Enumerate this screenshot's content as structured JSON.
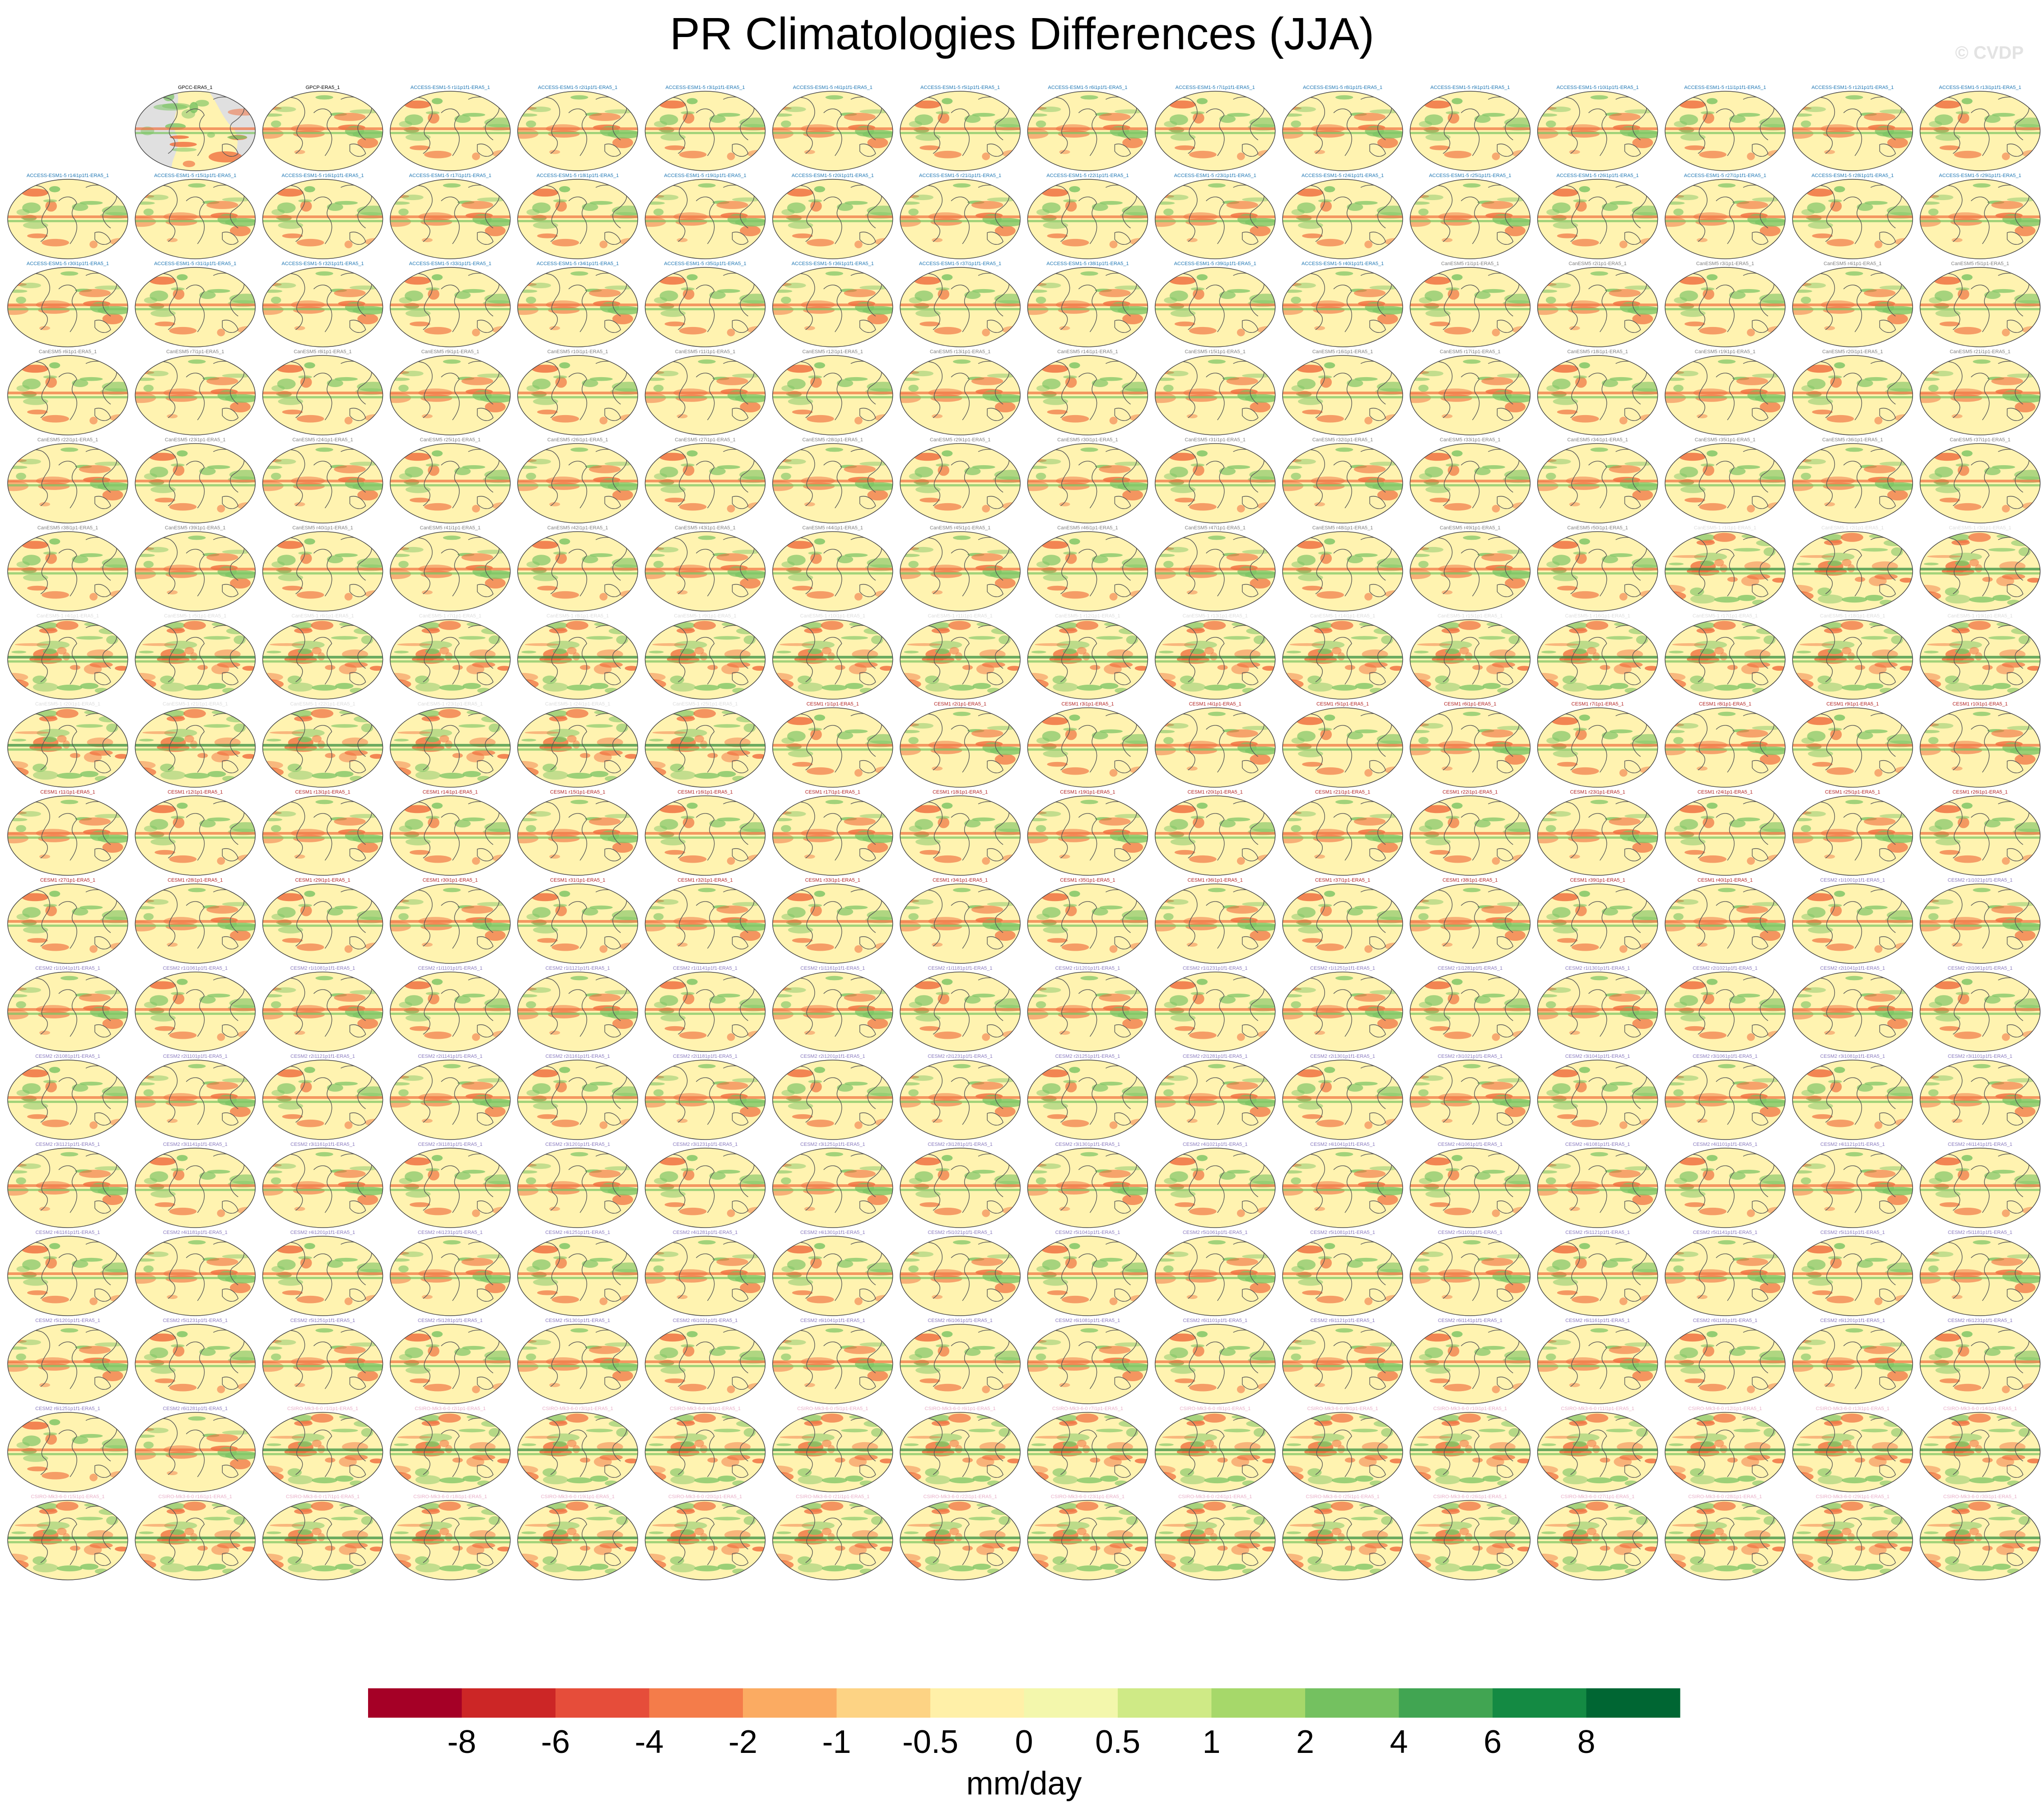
{
  "title": "PR Climatologies Differences (JJA)",
  "watermark": "© CVDP",
  "chart_data": {
    "type": "heatmap",
    "title": "PR Climatologies Differences (JJA)",
    "grid": {
      "rows": 18,
      "columns": 16,
      "first_row_offset": 1
    },
    "panels": [
      "GPCC-ERA5_1",
      "GPCP-ERA5_1",
      "ACCESS-ESM1-5 r1i1p1f1-ERA5_1",
      "ACCESS-ESM1-5 r2i1p1f1-ERA5_1",
      "ACCESS-ESM1-5 r3i1p1f1-ERA5_1",
      "ACCESS-ESM1-5 r4i1p1f1-ERA5_1",
      "ACCESS-ESM1-5 r5i1p1f1-ERA5_1",
      "ACCESS-ESM1-5 r6i1p1f1-ERA5_1",
      "ACCESS-ESM1-5 r7i1p1f1-ERA5_1",
      "ACCESS-ESM1-5 r8i1p1f1-ERA5_1",
      "ACCESS-ESM1-5 r9i1p1f1-ERA5_1",
      "ACCESS-ESM1-5 r10i1p1f1-ERA5_1",
      "ACCESS-ESM1-5 r11i1p1f1-ERA5_1",
      "ACCESS-ESM1-5 r12i1p1f1-ERA5_1",
      "ACCESS-ESM1-5 r13i1p1f1-ERA5_1",
      "ACCESS-ESM1-5 r14i1p1f1-ERA5_1",
      "ACCESS-ESM1-5 r15i1p1f1-ERA5_1",
      "ACCESS-ESM1-5 r16i1p1f1-ERA5_1",
      "ACCESS-ESM1-5 r17i1p1f1-ERA5_1",
      "ACCESS-ESM1-5 r18i1p1f1-ERA5_1",
      "ACCESS-ESM1-5 r19i1p1f1-ERA5_1",
      "ACCESS-ESM1-5 r20i1p1f1-ERA5_1",
      "ACCESS-ESM1-5 r21i1p1f1-ERA5_1",
      "ACCESS-ESM1-5 r22i1p1f1-ERA5_1",
      "ACCESS-ESM1-5 r23i1p1f1-ERA5_1",
      "ACCESS-ESM1-5 r24i1p1f1-ERA5_1",
      "ACCESS-ESM1-5 r25i1p1f1-ERA5_1",
      "ACCESS-ESM1-5 r26i1p1f1-ERA5_1",
      "ACCESS-ESM1-5 r27i1p1f1-ERA5_1",
      "ACCESS-ESM1-5 r28i1p1f1-ERA5_1",
      "ACCESS-ESM1-5 r29i1p1f1-ERA5_1",
      "ACCESS-ESM1-5 r30i1p1f1-ERA5_1",
      "ACCESS-ESM1-5 r31i1p1f1-ERA5_1",
      "ACCESS-ESM1-5 r32i1p1f1-ERA5_1",
      "ACCESS-ESM1-5 r33i1p1f1-ERA5_1",
      "ACCESS-ESM1-5 r34i1p1f1-ERA5_1",
      "ACCESS-ESM1-5 r35i1p1f1-ERA5_1",
      "ACCESS-ESM1-5 r36i1p1f1-ERA5_1",
      "ACCESS-ESM1-5 r37i1p1f1-ERA5_1",
      "ACCESS-ESM1-5 r38i1p1f1-ERA5_1",
      "ACCESS-ESM1-5 r39i1p1f1-ERA5_1",
      "ACCESS-ESM1-5 r40i1p1f1-ERA5_1",
      "CanESM5 r1i1p1-ERA5_1",
      "CanESM5 r2i1p1-ERA5_1",
      "CanESM5 r3i1p1-ERA5_1",
      "CanESM5 r4i1p1-ERA5_1",
      "CanESM5 r5i1p1-ERA5_1",
      "CanESM5 r6i1p1-ERA5_1",
      "CanESM5 r7i1p1-ERA5_1",
      "CanESM5 r8i1p1-ERA5_1",
      "CanESM5 r9i1p1-ERA5_1",
      "CanESM5 r10i1p1-ERA5_1",
      "CanESM5 r11i1p1-ERA5_1",
      "CanESM5 r12i1p1-ERA5_1",
      "CanESM5 r13i1p1-ERA5_1",
      "CanESM5 r14i1p1-ERA5_1",
      "CanESM5 r15i1p1-ERA5_1",
      "CanESM5 r16i1p1-ERA5_1",
      "CanESM5 r17i1p1-ERA5_1",
      "CanESM5 r18i1p1-ERA5_1",
      "CanESM5 r19i1p1-ERA5_1",
      "CanESM5 r20i1p1-ERA5_1",
      "CanESM5 r21i1p1-ERA5_1",
      "CanESM5 r22i1p1-ERA5_1",
      "CanESM5 r23i1p1-ERA5_1",
      "CanESM5 r24i1p1-ERA5_1",
      "CanESM5 r25i1p1-ERA5_1",
      "CanESM5 r26i1p1-ERA5_1",
      "CanESM5 r27i1p1-ERA5_1",
      "CanESM5 r28i1p1-ERA5_1",
      "CanESM5 r29i1p1-ERA5_1",
      "CanESM5 r30i1p1-ERA5_1",
      "CanESM5 r31i1p1-ERA5_1",
      "CanESM5 r32i1p1-ERA5_1",
      "CanESM5 r33i1p1-ERA5_1",
      "CanESM5 r34i1p1-ERA5_1",
      "CanESM5 r35i1p1-ERA5_1",
      "CanESM5 r36i1p1-ERA5_1",
      "CanESM5 r37i1p1-ERA5_1",
      "CanESM5 r38i1p1-ERA5_1",
      "CanESM5 r39i1p1-ERA5_1",
      "CanESM5 r40i1p1-ERA5_1",
      "CanESM5 r41i1p1-ERA5_1",
      "CanESM5 r42i1p1-ERA5_1",
      "CanESM5 r43i1p1-ERA5_1",
      "CanESM5 r44i1p1-ERA5_1",
      "CanESM5 r45i1p1-ERA5_1",
      "CanESM5 r46i1p1-ERA5_1",
      "CanESM5 r47i1p1-ERA5_1",
      "CanESM5 r48i1p1-ERA5_1",
      "CanESM5 r49i1p1-ERA5_1",
      "CanESM5 r50i1p1-ERA5_1",
      "CanESM5-1 r1i1p1-ERA5_1",
      "CanESM5-1 r2i1p1-ERA5_1",
      "CanESM5-1 r3i1p1-ERA5_1",
      "CanESM5-1 r4i1p1-ERA5_1",
      "CanESM5-1 r5i1p1-ERA5_1",
      "CanESM5-1 r6i1p1-ERA5_1",
      "CanESM5-1 r7i1p1-ERA5_1",
      "CanESM5-1 r8i1p1-ERA5_1",
      "CanESM5-1 r9i1p1-ERA5_1",
      "CanESM5-1 r10i1p1-ERA5_1",
      "CanESM5-1 r11i1p1-ERA5_1",
      "CanESM5-1 r12i1p1-ERA5_1",
      "CanESM5-1 r13i1p1-ERA5_1",
      "CanESM5-1 r14i1p1-ERA5_1",
      "CanESM5-1 r15i1p1-ERA5_1",
      "CanESM5-1 r16i1p1-ERA5_1",
      "CanESM5-1 r17i1p1-ERA5_1",
      "CanESM5-1 r18i1p1-ERA5_1",
      "CanESM5-1 r19i1p1-ERA5_1",
      "CanESM5-1 r20i1p1-ERA5_1",
      "CanESM5-1 r21i1p1-ERA5_1",
      "CanESM5-1 r22i1p1-ERA5_1",
      "CanESM5-1 r23i1p1-ERA5_1",
      "CanESM5-1 r24i1p1-ERA5_1",
      "CanESM5-1 r25i1p1-ERA5_1",
      "CESM1 r1i1p1-ERA5_1",
      "CESM1 r2i1p1-ERA5_1",
      "CESM1 r3i1p1-ERA5_1",
      "CESM1 r4i1p1-ERA5_1",
      "CESM1 r5i1p1-ERA5_1",
      "CESM1 r6i1p1-ERA5_1",
      "CESM1 r7i1p1-ERA5_1",
      "CESM1 r8i1p1-ERA5_1",
      "CESM1 r9i1p1-ERA5_1",
      "CESM1 r10i1p1-ERA5_1",
      "CESM1 r11i1p1-ERA5_1",
      "CESM1 r12i1p1-ERA5_1",
      "CESM1 r13i1p1-ERA5_1",
      "CESM1 r14i1p1-ERA5_1",
      "CESM1 r15i1p1-ERA5_1",
      "CESM1 r16i1p1-ERA5_1",
      "CESM1 r17i1p1-ERA5_1",
      "CESM1 r18i1p1-ERA5_1",
      "CESM1 r19i1p1-ERA5_1",
      "CESM1 r20i1p1-ERA5_1",
      "CESM1 r21i1p1-ERA5_1",
      "CESM1 r22i1p1-ERA5_1",
      "CESM1 r23i1p1-ERA5_1",
      "CESM1 r24i1p1-ERA5_1",
      "CESM1 r25i1p1-ERA5_1",
      "CESM1 r26i1p1-ERA5_1",
      "CESM1 r27i1p1-ERA5_1",
      "CESM1 r28i1p1-ERA5_1",
      "CESM1 r29i1p1-ERA5_1",
      "CESM1 r30i1p1-ERA5_1",
      "CESM1 r31i1p1-ERA5_1",
      "CESM1 r32i1p1-ERA5_1",
      "CESM1 r33i1p1-ERA5_1",
      "CESM1 r34i1p1-ERA5_1",
      "CESM1 r35i1p1-ERA5_1",
      "CESM1 r36i1p1-ERA5_1",
      "CESM1 r37i1p1-ERA5_1",
      "CESM1 r38i1p1-ERA5_1",
      "CESM1 r39i1p1-ERA5_1",
      "CESM1 r40i1p1-ERA5_1",
      "CESM2 r1i1001p1f1-ERA5_1",
      "CESM2 r1i1021p1f1-ERA5_1",
      "CESM2 r1i1041p1f1-ERA5_1",
      "CESM2 r1i1061p1f1-ERA5_1",
      "CESM2 r1i1081p1f1-ERA5_1",
      "CESM2 r1i1101p1f1-ERA5_1",
      "CESM2 r1i1121p1f1-ERA5_1",
      "CESM2 r1i1141p1f1-ERA5_1",
      "CESM2 r1i1161p1f1-ERA5_1",
      "CESM2 r1i1181p1f1-ERA5_1",
      "CESM2 r1i1201p1f1-ERA5_1",
      "CESM2 r1i1231p1f1-ERA5_1",
      "CESM2 r1i1251p1f1-ERA5_1",
      "CESM2 r1i1281p1f1-ERA5_1",
      "CESM2 r1i1301p1f1-ERA5_1",
      "CESM2 r2i1021p1f1-ERA5_1",
      "CESM2 r2i1041p1f1-ERA5_1",
      "CESM2 r2i1061p1f1-ERA5_1",
      "CESM2 r2i1081p1f1-ERA5_1",
      "CESM2 r2i1101p1f1-ERA5_1",
      "CESM2 r2i1121p1f1-ERA5_1",
      "CESM2 r2i1141p1f1-ERA5_1",
      "CESM2 r2i1161p1f1-ERA5_1",
      "CESM2 r2i1181p1f1-ERA5_1",
      "CESM2 r2i1201p1f1-ERA5_1",
      "CESM2 r2i1231p1f1-ERA5_1",
      "CESM2 r2i1251p1f1-ERA5_1",
      "CESM2 r2i1281p1f1-ERA5_1",
      "CESM2 r2i1301p1f1-ERA5_1",
      "CESM2 r3i1021p1f1-ERA5_1",
      "CESM2 r3i1041p1f1-ERA5_1",
      "CESM2 r3i1061p1f1-ERA5_1",
      "CESM2 r3i1081p1f1-ERA5_1",
      "CESM2 r3i1101p1f1-ERA5_1",
      "CESM2 r3i1121p1f1-ERA5_1",
      "CESM2 r3i1141p1f1-ERA5_1",
      "CESM2 r3i1161p1f1-ERA5_1",
      "CESM2 r3i1181p1f1-ERA5_1",
      "CESM2 r3i1201p1f1-ERA5_1",
      "CESM2 r3i1231p1f1-ERA5_1",
      "CESM2 r3i1251p1f1-ERA5_1",
      "CESM2 r3i1281p1f1-ERA5_1",
      "CESM2 r3i1301p1f1-ERA5_1",
      "CESM2 r4i1021p1f1-ERA5_1",
      "CESM2 r4i1041p1f1-ERA5_1",
      "CESM2 r4i1061p1f1-ERA5_1",
      "CESM2 r4i1081p1f1-ERA5_1",
      "CESM2 r4i1101p1f1-ERA5_1",
      "CESM2 r4i1121p1f1-ERA5_1",
      "CESM2 r4i1141p1f1-ERA5_1",
      "CESM2 r4i1161p1f1-ERA5_1",
      "CESM2 r4i1181p1f1-ERA5_1",
      "CESM2 r4i1201p1f1-ERA5_1",
      "CESM2 r4i1231p1f1-ERA5_1",
      "CESM2 r4i1251p1f1-ERA5_1",
      "CESM2 r4i1281p1f1-ERA5_1",
      "CESM2 r4i1301p1f1-ERA5_1",
      "CESM2 r5i1021p1f1-ERA5_1",
      "CESM2 r5i1041p1f1-ERA5_1",
      "CESM2 r5i1061p1f1-ERA5_1",
      "CESM2 r5i1081p1f1-ERA5_1",
      "CESM2 r5i1101p1f1-ERA5_1",
      "CESM2 r5i1121p1f1-ERA5_1",
      "CESM2 r5i1141p1f1-ERA5_1",
      "CESM2 r5i1161p1f1-ERA5_1",
      "CESM2 r5i1181p1f1-ERA5_1",
      "CESM2 r5i1201p1f1-ERA5_1",
      "CESM2 r5i1231p1f1-ERA5_1",
      "CESM2 r5i1251p1f1-ERA5_1",
      "CESM2 r5i1281p1f1-ERA5_1",
      "CESM2 r5i1301p1f1-ERA5_1",
      "CESM2 r6i1021p1f1-ERA5_1",
      "CESM2 r6i1041p1f1-ERA5_1",
      "CESM2 r6i1061p1f1-ERA5_1",
      "CESM2 r6i1081p1f1-ERA5_1",
      "CESM2 r6i1101p1f1-ERA5_1",
      "CESM2 r6i1121p1f1-ERA5_1",
      "CESM2 r6i1141p1f1-ERA5_1",
      "CESM2 r6i1161p1f1-ERA5_1",
      "CESM2 r6i1181p1f1-ERA5_1",
      "CESM2 r6i1201p1f1-ERA5_1",
      "CESM2 r6i1231p1f1-ERA5_1",
      "CESM2 r6i1251p1f1-ERA5_1",
      "CESM2 r6i1281p1f1-ERA5_1",
      "CSIRO-Mk3-6-0 r1i1p1-ERA5_1",
      "CSIRO-Mk3-6-0 r2i1p1-ERA5_1",
      "CSIRO-Mk3-6-0 r3i1p1-ERA5_1",
      "CSIRO-Mk3-6-0 r4i1p1-ERA5_1",
      "CSIRO-Mk3-6-0 r5i1p1-ERA5_1",
      "CSIRO-Mk3-6-0 r6i1p1-ERA5_1",
      "CSIRO-Mk3-6-0 r7i1p1-ERA5_1",
      "CSIRO-Mk3-6-0 r8i1p1-ERA5_1",
      "CSIRO-Mk3-6-0 r9i1p1-ERA5_1",
      "CSIRO-Mk3-6-0 r10i1p1-ERA5_1",
      "CSIRO-Mk3-6-0 r11i1p1-ERA5_1",
      "CSIRO-Mk3-6-0 r12i1p1-ERA5_1",
      "CSIRO-Mk3-6-0 r13i1p1-ERA5_1",
      "CSIRO-Mk3-6-0 r14i1p1-ERA5_1",
      "CSIRO-Mk3-6-0 r15i1p1-ERA5_1",
      "CSIRO-Mk3-6-0 r16i1p1-ERA5_1",
      "CSIRO-Mk3-6-0 r17i1p1-ERA5_1",
      "CSIRO-Mk3-6-0 r18i1p1-ERA5_1",
      "CSIRO-Mk3-6-0 r19i1p1-ERA5_1",
      "CSIRO-Mk3-6-0 r20i1p1-ERA5_1",
      "CSIRO-Mk3-6-0 r21i1p1-ERA5_1",
      "CSIRO-Mk3-6-0 r22i1p1-ERA5_1",
      "CSIRO-Mk3-6-0 r23i1p1-ERA5_1",
      "CSIRO-Mk3-6-0 r24i1p1-ERA5_1",
      "CSIRO-Mk3-6-0 r25i1p1-ERA5_1",
      "CSIRO-Mk3-6-0 r26i1p1-ERA5_1",
      "CSIRO-Mk3-6-0 r27i1p1-ERA5_1",
      "CSIRO-Mk3-6-0 r28i1p1-ERA5_1",
      "CSIRO-Mk3-6-0 r29i1p1-ERA5_1",
      "CSIRO-Mk3-6-0 r30i1p1-ERA5_1"
    ],
    "colorbar": {
      "unit_label": "mm/day",
      "levels": [
        "-8",
        "-6",
        "-4",
        "-2",
        "-1",
        "-0.5",
        "0",
        "0.5",
        "1",
        "2",
        "4",
        "6",
        "8"
      ],
      "colors": [
        "#a50026",
        "#cc2626",
        "#e64d3a",
        "#f47c4a",
        "#fbab62",
        "#fdd384",
        "#fff0a8",
        "#f3f7ac",
        "#cfea86",
        "#a6d86a",
        "#74c160",
        "#41a552",
        "#148a43",
        "#006633"
      ]
    },
    "group_label_colors": {
      "GPCC": "#000000",
      "GPCP": "#000000",
      "ACCESS-ESM1-5": "#1f77b4",
      "CanESM5": "#7f7f7f",
      "CanESM5-1": "#dcdcdc",
      "CESM1": "#b22222",
      "CESM2": "#8a7bbf",
      "CSIRO-Mk3-6-0": "#e8b0c8"
    },
    "map_palette": {
      "land_obs": "#e0e0e0",
      "ocean": "#fff3b0",
      "wet": "#7cc464",
      "dry": "#f07040",
      "coast": "#555555"
    }
  }
}
